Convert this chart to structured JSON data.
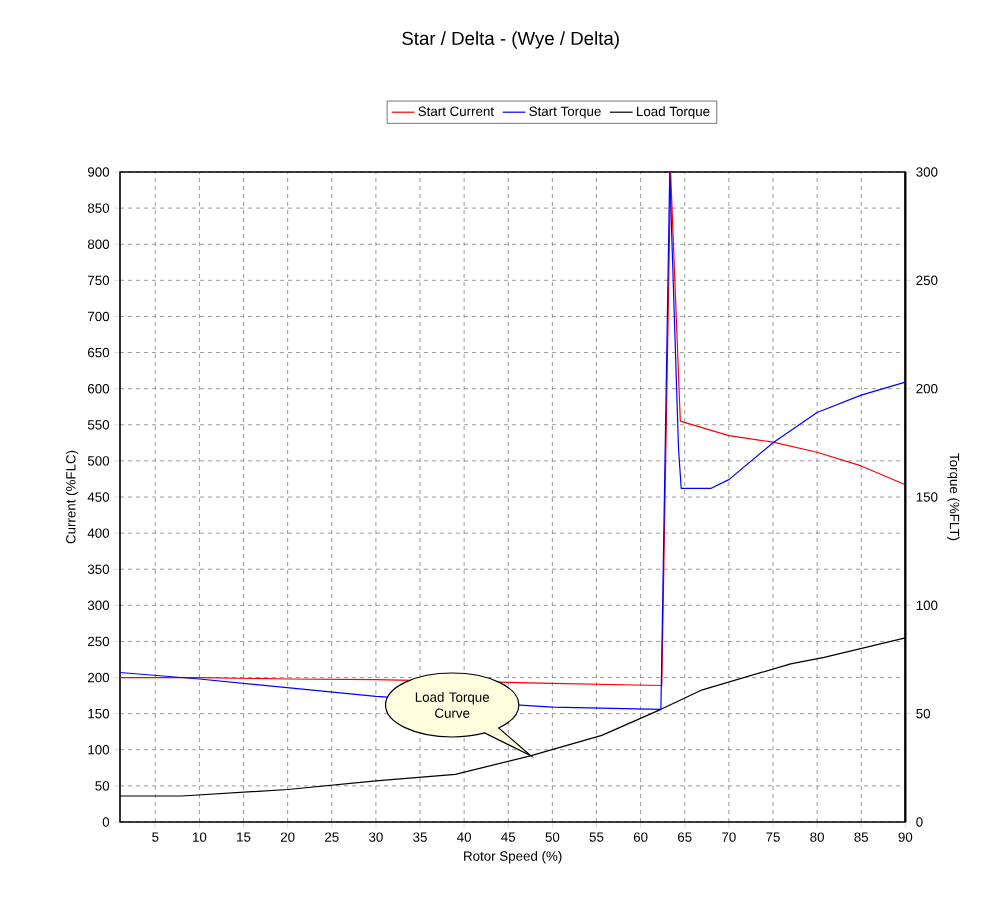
{
  "chart_data": {
    "type": "line",
    "title": "Star / Delta - (Wye / Delta)",
    "xlabel": "Rotor Speed (%)",
    "ylabel": "Current (%FLC)",
    "y2label": "Torque (%FLT)",
    "xlim": [
      1,
      90
    ],
    "xticks": [
      5,
      10,
      15,
      20,
      25,
      30,
      35,
      40,
      45,
      50,
      55,
      60,
      65,
      70,
      75,
      80,
      85,
      90
    ],
    "ylim": [
      0,
      900
    ],
    "yticks": [
      0,
      50,
      100,
      150,
      200,
      250,
      300,
      350,
      400,
      450,
      500,
      550,
      600,
      650,
      700,
      750,
      800,
      850,
      900
    ],
    "y2lim": [
      0,
      300
    ],
    "y2ticks": [
      0,
      50,
      100,
      150,
      200,
      250,
      300
    ],
    "grid": true,
    "legend": "top",
    "series": [
      {
        "name": "Start Current",
        "color": "#ff0000",
        "x": [
          1,
          10,
          20,
          30,
          40,
          50,
          62.4,
          63.4,
          64.5,
          70,
          75,
          80,
          85,
          90
        ],
        "values": [
          200,
          200,
          198,
          197,
          null,
          192,
          189,
          900,
          555,
          535,
          526,
          512,
          493,
          467
        ]
      },
      {
        "name": "Start Torque",
        "color": "#0000ff",
        "axis": "y2",
        "x": [
          1,
          10,
          20,
          30,
          40,
          50,
          62.3,
          63.3,
          64.3,
          64.6,
          68,
          70,
          75,
          80,
          85,
          90
        ],
        "values": [
          69,
          66,
          62,
          58,
          null,
          53,
          52,
          300,
          172,
          154,
          154,
          158,
          175,
          189,
          197,
          203
        ]
      },
      {
        "name": "Load Torque",
        "color": "#000000",
        "axis": "y2",
        "x": [
          1,
          8,
          20,
          30,
          39,
          47.5,
          55.6,
          62.3,
          67,
          77,
          80.8,
          90
        ],
        "values": [
          12,
          12,
          15,
          19,
          22,
          30.5,
          40,
          52,
          61,
          73,
          76,
          85
        ]
      }
    ],
    "annotations": [
      "Load Torque Curve"
    ]
  }
}
